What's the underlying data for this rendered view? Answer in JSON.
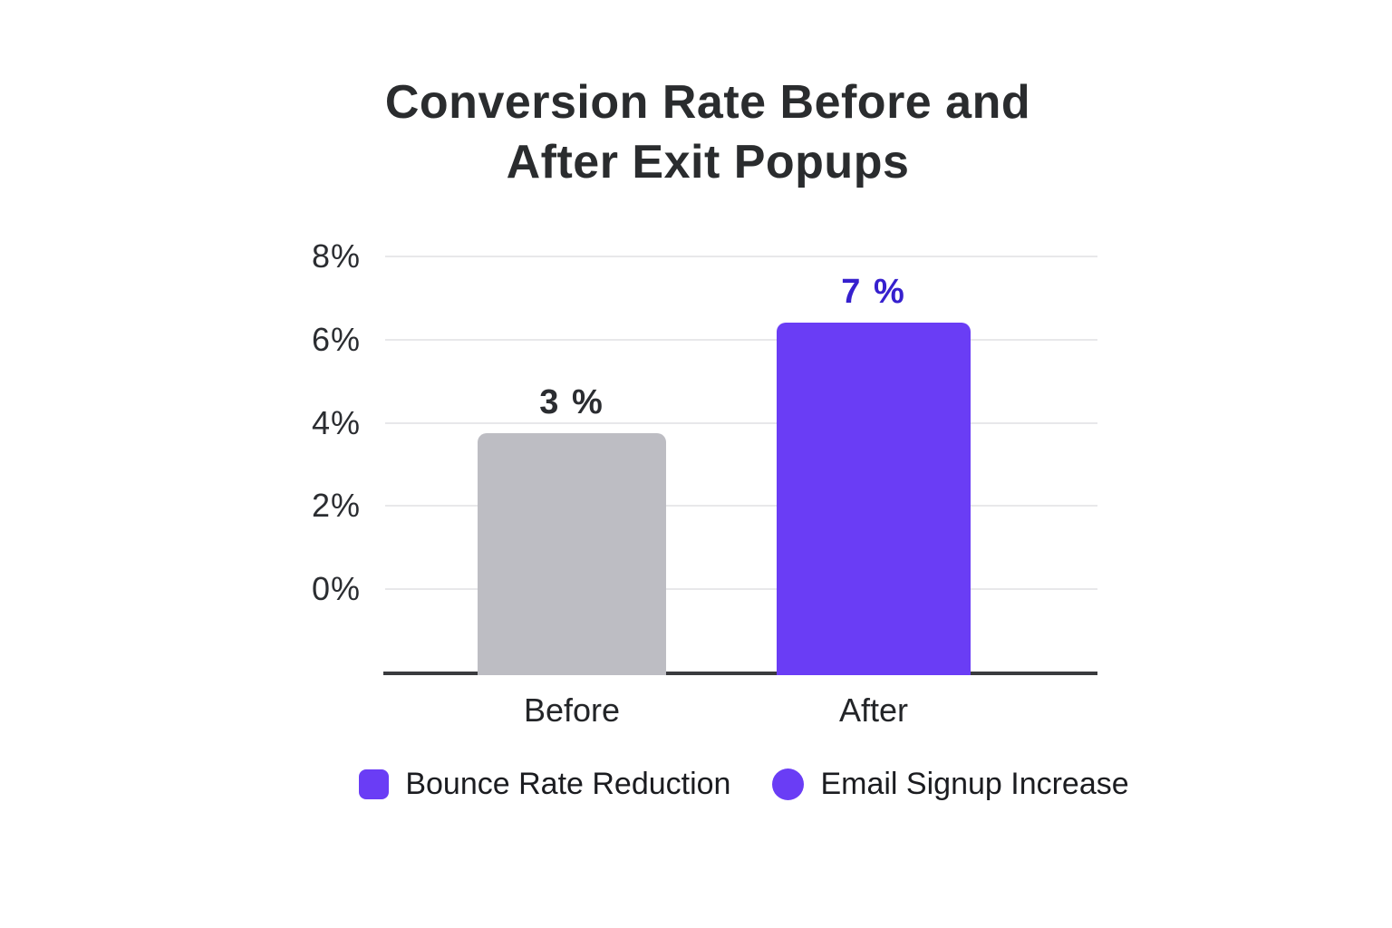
{
  "page": {
    "background": "#ffffff"
  },
  "title": {
    "line1": "Conversion Rate Before and",
    "line2": "After Exit Popups"
  },
  "chart_data": {
    "type": "bar",
    "title": "Conversion Rate Before and After Exit Popups",
    "categories": [
      "Before",
      "After"
    ],
    "values": [
      3,
      7
    ],
    "value_labels": [
      "3 %",
      "7 %"
    ],
    "ylim": [
      -2,
      8
    ],
    "grid": true,
    "legend_position": "bottom",
    "yticks": [
      {
        "value": 8,
        "label": "8%"
      },
      {
        "value": 6,
        "label": "6%"
      },
      {
        "value": 4,
        "label": "4%"
      },
      {
        "value": 2,
        "label": "2%"
      },
      {
        "value": 0,
        "label": "0%"
      }
    ],
    "bars": [
      {
        "category": "Before",
        "value": 3,
        "value_label": "3 %",
        "rendered_percent": 3.75,
        "color": "#BDBDC3",
        "value_label_color": "#2B2D31"
      },
      {
        "category": "After",
        "value": 7,
        "value_label": "7 %",
        "rendered_percent": 6.4,
        "color": "#6A3DF5",
        "value_label_color": "#3620CE"
      }
    ]
  },
  "legend": {
    "items": [
      {
        "shape": "square",
        "label": "Bounce Rate Reduction",
        "color": "#6A3DF5"
      },
      {
        "shape": "circle",
        "label": "Email Signup Increase",
        "color": "#6A3DF5"
      }
    ]
  },
  "colors": {
    "accent_purple": "#6A3DF5",
    "bar_gray": "#BDBDC3",
    "value_label_blue": "#3620CE",
    "gridline": "#E8E8EA",
    "axis_line": "#3A3B3E",
    "title_text": "#2A2C2E",
    "tick_text": "#2B2D31",
    "category_text": "#232528",
    "legend_text": "#1B1C20"
  }
}
